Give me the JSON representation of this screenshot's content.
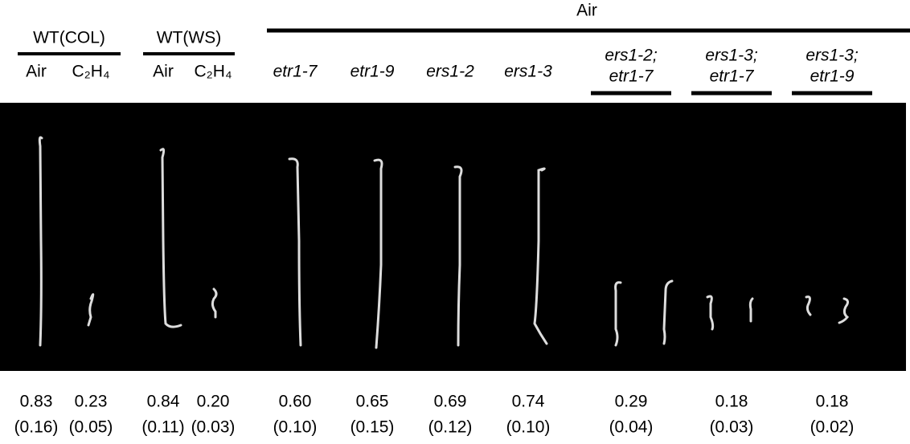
{
  "header": {
    "span_label": "Air",
    "wt_groups": [
      {
        "name": "WT(COL)",
        "conditions": [
          "Air",
          "C₂H₄"
        ]
      },
      {
        "name": "WT(WS)",
        "conditions": [
          "Air",
          "C₂H₄"
        ]
      }
    ],
    "genotypes": [
      {
        "lines": [
          "etr1-7"
        ]
      },
      {
        "lines": [
          "etr1-9"
        ]
      },
      {
        "lines": [
          "ers1-2"
        ]
      },
      {
        "lines": [
          "ers1-3"
        ]
      },
      {
        "lines": [
          "ers1-2;",
          "etr1-7"
        ]
      },
      {
        "lines": [
          "ers1-3;",
          "etr1-7"
        ]
      },
      {
        "lines": [
          "ers1-3;",
          "etr1-9"
        ]
      }
    ]
  },
  "measurements": [
    {
      "mean": "0.83",
      "sd": "(0.16)"
    },
    {
      "mean": "0.23",
      "sd": "(0.05)"
    },
    {
      "mean": "0.84",
      "sd": "(0.11)"
    },
    {
      "mean": "0.20",
      "sd": "(0.03)"
    },
    {
      "mean": "0.60",
      "sd": "(0.10)"
    },
    {
      "mean": "0.65",
      "sd": "(0.15)"
    },
    {
      "mean": "0.69",
      "sd": "(0.12)"
    },
    {
      "mean": "0.74",
      "sd": "(0.10)"
    },
    {
      "mean": "0.29",
      "sd": "(0.04)"
    },
    {
      "mean": "0.18",
      "sd": "(0.03)"
    },
    {
      "mean": "0.18",
      "sd": "(0.02)"
    }
  ]
}
